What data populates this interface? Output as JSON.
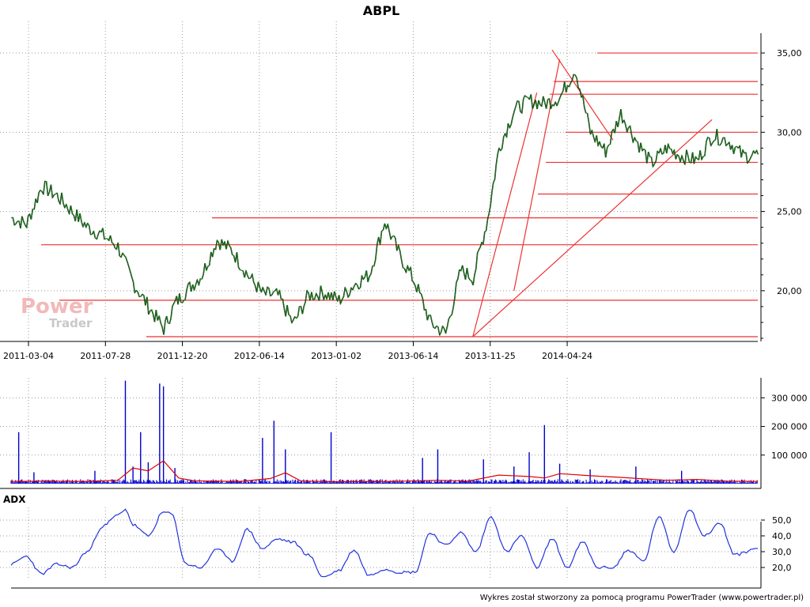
{
  "chart_data": {
    "type": "line",
    "title": "ABPL",
    "grid": true,
    "colors": {
      "price": "#0a7a0a",
      "volume": "#0000cc",
      "volume_avg": "#e00000",
      "adx": "#2233dd",
      "lines": "#ee3333"
    },
    "price_panel": {
      "ylim": [
        17.0,
        36.0
      ],
      "yticks": [
        20,
        25,
        30,
        35
      ],
      "ytick_labels": [
        "20,00",
        "25,00",
        "30,00",
        "35,00"
      ],
      "xtick_labels": [
        "2011-03-04",
        "2011-07-28",
        "2011-12-20",
        "2012-06-14",
        "2013-01-02",
        "2013-06-14",
        "2013-11-25",
        "2014-04-24"
      ],
      "x_range": [
        0,
        980
      ],
      "xticks": [
        0,
        101,
        202,
        303,
        404,
        505,
        606,
        707
      ],
      "series": [
        {
          "x": [
            0,
            20,
            40,
            60,
            80,
            100,
            120,
            140,
            160,
            180,
            200,
            215,
            230,
            250,
            270,
            290,
            310,
            330,
            350,
            370,
            390,
            410,
            430,
            450,
            470,
            490,
            510,
            530,
            550,
            570,
            590,
            606,
            625,
            640,
            660,
            680,
            700,
            720,
            740,
            760,
            780,
            800,
            820,
            840,
            860,
            880,
            900,
            920,
            940,
            960,
            980
          ],
          "values": [
            24.6,
            24.2,
            26.6,
            26.0,
            25.0,
            24.0,
            23.5,
            22.8,
            20.5,
            19.0,
            17.6,
            19.2,
            20.0,
            21.0,
            23.2,
            22.5,
            21.0,
            19.8,
            19.7,
            17.9,
            19.7,
            19.9,
            19.4,
            20.4,
            21.0,
            24.4,
            22.2,
            20.5,
            18.0,
            17.3,
            21.3,
            20.8,
            24.5,
            29.0,
            31.4,
            32.0,
            31.8,
            32.2,
            34.0,
            30.0,
            28.8,
            31.2,
            29.5,
            28.0,
            29.0,
            28.5,
            28.2,
            29.8,
            29.5,
            28.5,
            28.6
          ]
        }
      ],
      "horizontal_levels": [
        17.1,
        19.4,
        22.9,
        24.6,
        26.1,
        28.1,
        30.0,
        32.4,
        33.2,
        35.0
      ],
      "trend_lines": [
        {
          "x": [
            606,
            690
          ],
          "y": [
            17.1,
            32.5
          ]
        },
        {
          "x": [
            606,
            920
          ],
          "y": [
            17.1,
            30.8
          ]
        },
        {
          "x": [
            660,
            720
          ],
          "y": [
            20.0,
            34.6
          ]
        },
        {
          "x": [
            710,
            790
          ],
          "y": [
            35.2,
            29.5
          ]
        }
      ]
    },
    "volume_panel": {
      "ylim": [
        0,
        370000
      ],
      "yticks": [
        100000,
        200000,
        300000
      ],
      "ytick_labels": [
        "100 000",
        "200 000",
        "300 000"
      ],
      "spikes": [
        {
          "x": 10,
          "v": 180000
        },
        {
          "x": 30,
          "v": 40000
        },
        {
          "x": 110,
          "v": 45000
        },
        {
          "x": 150,
          "v": 360000
        },
        {
          "x": 160,
          "v": 60000
        },
        {
          "x": 170,
          "v": 180000
        },
        {
          "x": 180,
          "v": 75000
        },
        {
          "x": 195,
          "v": 350000
        },
        {
          "x": 200,
          "v": 340000
        },
        {
          "x": 215,
          "v": 55000
        },
        {
          "x": 330,
          "v": 160000
        },
        {
          "x": 345,
          "v": 220000
        },
        {
          "x": 360,
          "v": 120000
        },
        {
          "x": 420,
          "v": 180000
        },
        {
          "x": 540,
          "v": 90000
        },
        {
          "x": 560,
          "v": 120000
        },
        {
          "x": 620,
          "v": 85000
        },
        {
          "x": 660,
          "v": 60000
        },
        {
          "x": 680,
          "v": 110000
        },
        {
          "x": 700,
          "v": 205000
        },
        {
          "x": 720,
          "v": 70000
        },
        {
          "x": 760,
          "v": 50000
        },
        {
          "x": 820,
          "v": 60000
        },
        {
          "x": 880,
          "v": 45000
        }
      ],
      "avg": {
        "x": [
          0,
          50,
          100,
          140,
          160,
          180,
          200,
          220,
          240,
          300,
          340,
          360,
          380,
          420,
          500,
          560,
          600,
          640,
          680,
          700,
          720,
          760,
          800,
          860,
          900,
          940,
          980
        ],
        "values": [
          8000,
          9000,
          8000,
          12000,
          55000,
          45000,
          80000,
          20000,
          10000,
          8000,
          18000,
          38000,
          10000,
          7000,
          8000,
          12000,
          9000,
          30000,
          25000,
          20000,
          35000,
          28000,
          22000,
          12000,
          15000,
          9000,
          8000
        ]
      }
    },
    "adx_panel": {
      "label": "ADX",
      "ylim": [
        12,
        58
      ],
      "yticks": [
        20,
        30,
        40,
        50
      ],
      "ytick_labels": [
        "20,0",
        "30,0",
        "40,0",
        "50,0"
      ],
      "series": [
        {
          "x": [
            0,
            20,
            40,
            60,
            80,
            100,
            120,
            140,
            150,
            160,
            180,
            200,
            210,
            230,
            250,
            270,
            290,
            310,
            330,
            350,
            370,
            390,
            410,
            430,
            450,
            470,
            490,
            510,
            530,
            550,
            570,
            590,
            610,
            630,
            650,
            670,
            690,
            710,
            730,
            750,
            770,
            790,
            810,
            830,
            850,
            870,
            890,
            910,
            930,
            950,
            980
          ],
          "values": [
            22,
            27,
            16,
            22,
            20,
            30,
            46,
            53,
            57,
            47,
            40,
            55,
            54,
            22,
            20,
            32,
            24,
            44,
            32,
            38,
            36,
            28,
            14,
            18,
            31,
            15,
            19,
            17,
            17,
            42,
            34,
            42,
            30,
            52,
            30,
            40,
            20,
            38,
            20,
            36,
            20,
            20,
            31,
            24,
            52,
            30,
            57,
            40,
            48,
            28,
            32
          ]
        }
      ]
    },
    "watermark": {
      "line1": "Power",
      "line2": "Trader"
    },
    "footer": "Wykres został stworzony za pomocą programu PowerTrader (www.powertrader.pl)"
  }
}
